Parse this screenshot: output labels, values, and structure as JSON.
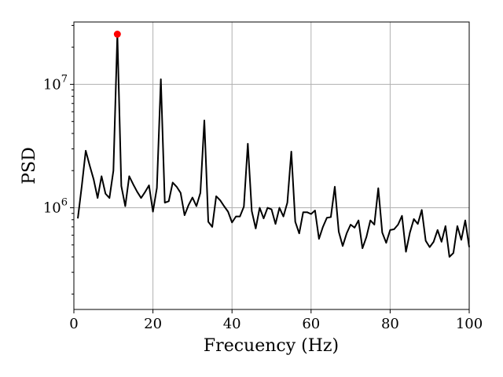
{
  "chart_data": {
    "type": "line",
    "title": "",
    "xlabel": "Frecuency (Hz)",
    "ylabel": "PSD",
    "xlim": [
      0,
      100
    ],
    "ylim": [
      150000,
      32000000
    ],
    "yscale": "log",
    "grid": true,
    "line_color": "#000000",
    "xticks": [
      0,
      20,
      40,
      60,
      80,
      100
    ],
    "xtick_labels": [
      "0",
      "20",
      "40",
      "60",
      "80",
      "100"
    ],
    "yticks": [
      1000000,
      10000000
    ],
    "ytick_labels": [
      "10^6",
      "10^7"
    ],
    "series": [
      {
        "x": [
          1,
          2,
          3,
          4,
          5,
          6,
          7,
          8,
          9,
          10,
          11,
          12,
          13,
          14,
          15,
          16,
          17,
          18,
          19,
          20,
          21,
          22,
          23,
          24,
          25,
          26,
          27,
          28,
          29,
          30,
          31,
          32,
          33,
          34,
          35,
          36,
          37,
          38,
          39,
          40,
          41,
          42,
          43,
          44,
          45,
          46,
          47,
          48,
          49,
          50,
          51,
          52,
          53,
          54,
          55,
          56,
          57,
          58,
          59,
          60,
          61,
          62,
          63,
          64,
          65,
          66,
          67,
          68,
          69,
          70,
          71,
          72,
          73,
          74,
          75,
          76,
          77,
          78,
          79,
          80,
          81,
          82,
          83,
          84,
          85,
          86,
          87,
          88,
          89,
          90,
          91,
          92,
          93,
          94,
          95,
          96,
          97,
          98,
          99,
          100
        ],
        "y": [
          820000,
          1500000,
          2900000,
          2200000,
          1700000,
          1200000,
          1800000,
          1300000,
          1200000,
          2000000,
          25500000,
          1500000,
          1030000,
          1800000,
          1550000,
          1350000,
          1200000,
          1340000,
          1520000,
          930000,
          1450000,
          11000000,
          1100000,
          1130000,
          1600000,
          1480000,
          1320000,
          870000,
          1050000,
          1210000,
          1030000,
          1320000,
          5100000,
          770000,
          700000,
          1240000,
          1150000,
          1030000,
          930000,
          760000,
          850000,
          850000,
          1020000,
          3300000,
          940000,
          680000,
          1000000,
          820000,
          1000000,
          970000,
          740000,
          1000000,
          850000,
          1100000,
          2850000,
          770000,
          620000,
          920000,
          920000,
          890000,
          950000,
          560000,
          700000,
          830000,
          840000,
          1480000,
          640000,
          490000,
          620000,
          730000,
          690000,
          790000,
          470000,
          580000,
          790000,
          730000,
          1440000,
          630000,
          520000,
          660000,
          670000,
          730000,
          860000,
          440000,
          630000,
          810000,
          740000,
          960000,
          540000,
          480000,
          530000,
          660000,
          530000,
          710000,
          400000,
          430000,
          710000,
          550000,
          790000,
          480000
        ]
      }
    ],
    "highlight_point": {
      "x": 11,
      "y": 25500000,
      "color": "#ff0000"
    }
  }
}
